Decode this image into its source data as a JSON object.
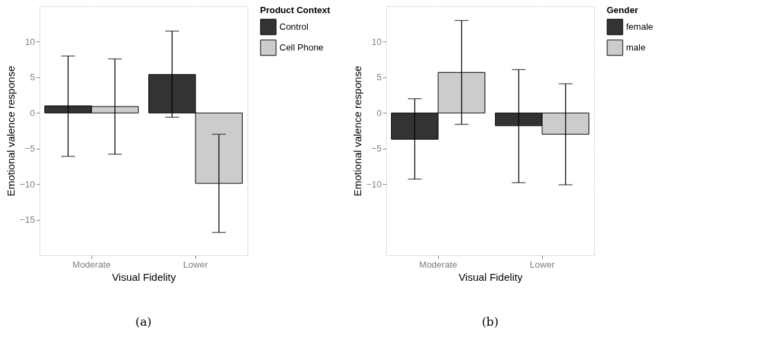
{
  "chart_data": [
    {
      "type": "bar",
      "xlabel": "Visual Fidelity",
      "ylabel": "Emotional valence response",
      "legend_title": "Product Context",
      "categories": [
        "Moderate",
        "Lower"
      ],
      "series": [
        {
          "name": "Control",
          "color": "#333333",
          "values": [
            1.0,
            5.4
          ],
          "errors": [
            [
              -6.1,
              8.0
            ],
            [
              -0.6,
              11.5
            ]
          ]
        },
        {
          "name": "Cell Phone",
          "color": "#cccccc",
          "values": [
            0.9,
            -9.9
          ],
          "errors": [
            [
              -5.8,
              7.6
            ],
            [
              -16.8,
              -3.0
            ]
          ]
        }
      ],
      "ylim": [
        -20,
        15
      ],
      "yticks": [
        -15,
        -10,
        -5,
        0,
        5,
        10
      ],
      "grid": true,
      "legend": "right",
      "annotations": [
        "(a)"
      ]
    },
    {
      "type": "bar",
      "xlabel": "Visual Fidelity",
      "ylabel": "Emotional valence response",
      "legend_title": "Gender",
      "categories": [
        "Moderate",
        "Lower"
      ],
      "series": [
        {
          "name": "female",
          "color": "#333333",
          "values": [
            -3.7,
            -1.8
          ],
          "errors": [
            [
              -9.3,
              2.0
            ],
            [
              -9.8,
              6.1
            ]
          ]
        },
        {
          "name": "male",
          "color": "#cccccc",
          "values": [
            5.7,
            -3.0
          ],
          "errors": [
            [
              -1.6,
              13.0
            ],
            [
              -10.1,
              4.1
            ]
          ]
        }
      ],
      "ylim": [
        -20,
        15
      ],
      "yticks": [
        -10,
        -5,
        0,
        5,
        10
      ],
      "grid": true,
      "legend": "right",
      "annotations": [
        "(b)"
      ]
    }
  ]
}
